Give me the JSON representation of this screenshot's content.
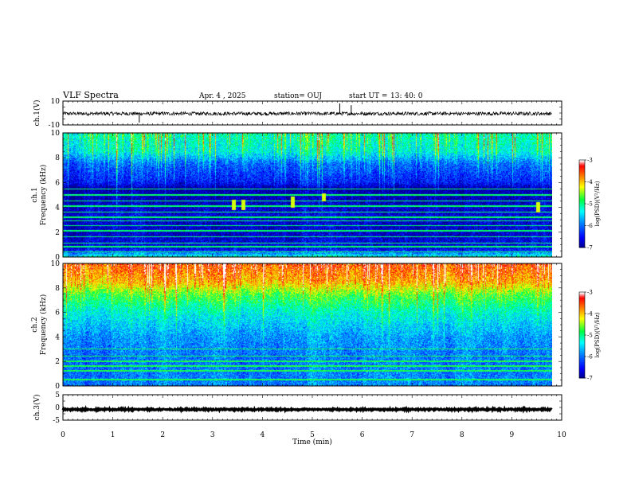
{
  "header": {
    "title": "VLF Spectra",
    "date": "Apr. 4 , 2025",
    "station": "station= OUJ",
    "start_label": "start  UT =",
    "start_time": "13: 40: 0"
  },
  "chart_data": [
    {
      "id": "ch1-waveform",
      "type": "line",
      "ylabel": "ch.1(V)",
      "ylim": [
        -10,
        10
      ],
      "y_ticks": [
        "10",
        "-10"
      ],
      "xlim": [
        0,
        10
      ],
      "baseline": -0.5,
      "noise_amplitude": 1.5,
      "spikes": [
        {
          "x": 1.53,
          "y": -8
        },
        {
          "x": 5.55,
          "y": 8
        },
        {
          "x": 5.78,
          "y": 6.5
        }
      ],
      "line_color": "#000000"
    },
    {
      "id": "ch1-spectrogram",
      "type": "heatmap",
      "ylabel": "Frequency  (kHz)",
      "channel_label": "ch.1",
      "ylim": [
        0,
        10
      ],
      "y_ticks": [
        "0",
        "2",
        "4",
        "6",
        "8",
        "10"
      ],
      "xlim": [
        0,
        10
      ],
      "data_xlim": [
        0,
        9.8
      ],
      "colorbar": {
        "label": "log(PSD)(V²/Hz)",
        "range": [
          -7,
          -3
        ],
        "ticks": [
          "-3",
          "-4",
          "-5",
          "-6",
          "-7"
        ]
      },
      "background_level_by_freq": [
        {
          "f": 0,
          "v": -5.2
        },
        {
          "f": 0.6,
          "v": -6.5
        },
        {
          "f": 2.0,
          "v": -6.7
        },
        {
          "f": 3.5,
          "v": -6.6
        },
        {
          "f": 5.5,
          "v": -6.9
        },
        {
          "f": 6.0,
          "v": -6.4
        },
        {
          "f": 7.5,
          "v": -6.0
        },
        {
          "f": 8.5,
          "v": -5.3
        },
        {
          "f": 10,
          "v": -5.1
        }
      ],
      "narrowband_lines_khz": [
        0.4,
        0.8,
        1.1,
        1.6,
        2.1,
        2.5,
        2.9,
        3.2,
        3.6,
        4.1,
        4.5,
        5.0,
        5.5
      ],
      "narrowband_level": -4.9,
      "bursts": [
        {
          "t": 3.42,
          "f_low": 3.8,
          "f_high": 4.6
        },
        {
          "t": 3.6,
          "f_low": 3.8,
          "f_high": 4.6
        },
        {
          "t": 4.6,
          "f_low": 4.0,
          "f_high": 4.9
        },
        {
          "t": 5.22,
          "f_low": 4.5,
          "f_high": 5.1
        },
        {
          "t": 9.52,
          "f_low": 3.6,
          "f_high": 4.4
        }
      ]
    },
    {
      "id": "ch2-spectrogram",
      "type": "heatmap",
      "ylabel": "Frequency  (kHz)",
      "channel_label": "ch.2",
      "ylim": [
        0,
        10
      ],
      "y_ticks": [
        "0",
        "2",
        "4",
        "6",
        "8",
        "10"
      ],
      "xlim": [
        0,
        10
      ],
      "data_xlim": [
        0,
        9.8
      ],
      "colorbar": {
        "label": "log(PSD)(V²/Hz)",
        "range": [
          -7,
          -3
        ],
        "ticks": [
          "-3",
          "-4",
          "-5",
          "-6",
          "-7"
        ]
      },
      "background_level_by_freq": [
        {
          "f": 0,
          "v": -5.8
        },
        {
          "f": 2.0,
          "v": -5.9
        },
        {
          "f": 4.0,
          "v": -5.7
        },
        {
          "f": 6.0,
          "v": -5.2
        },
        {
          "f": 7.5,
          "v": -4.6
        },
        {
          "f": 8.5,
          "v": -3.9
        },
        {
          "f": 10,
          "v": -3.5
        }
      ],
      "narrowband_lines_khz": [
        0.5,
        1.2,
        1.6,
        2.0,
        2.4,
        3.0
      ],
      "narrowband_level": -4.8
    },
    {
      "id": "ch3-waveform",
      "type": "line",
      "ylabel": "ch.3(V)",
      "ylim": [
        -5,
        5
      ],
      "y_ticks": [
        "5",
        "0",
        "-5"
      ],
      "xlim": [
        0,
        10
      ],
      "baseline": -0.8,
      "noise_amplitude": 0.25,
      "line_color": "#000000"
    }
  ],
  "x_axis": {
    "label": "Time  (min)",
    "ticks": [
      "0",
      "1",
      "2",
      "3",
      "4",
      "5",
      "6",
      "7",
      "8",
      "9",
      "10"
    ]
  },
  "colors": {
    "colormap": [
      "#000088",
      "#0000ff",
      "#0080ff",
      "#00ffff",
      "#00ff40",
      "#ffff00",
      "#ff8000",
      "#ff0000",
      "#ffffff"
    ]
  }
}
